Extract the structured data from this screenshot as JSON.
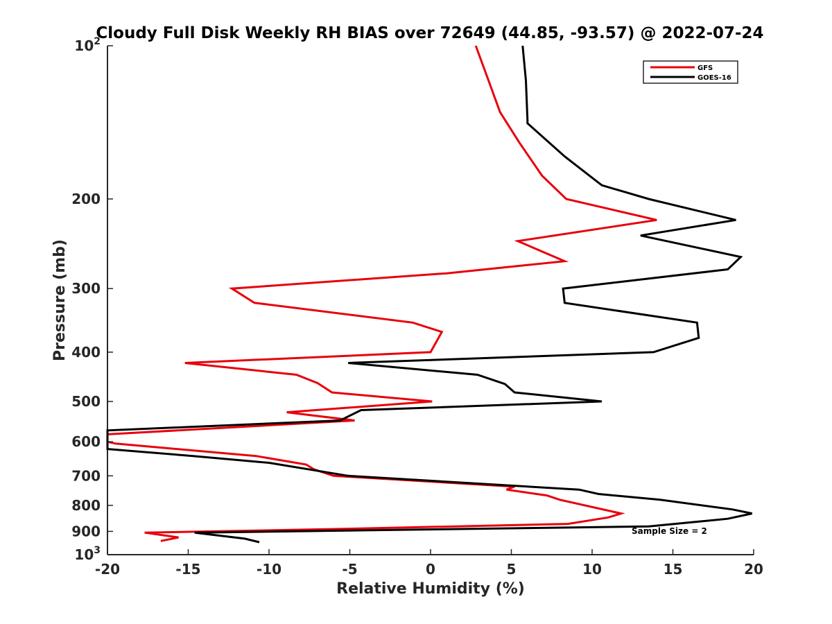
{
  "chart_data": {
    "type": "line",
    "title": "Cloudy Full Disk Weekly RH BIAS over 72649 (44.85, -93.57) @ 2022-07-24",
    "xlabel": "Relative Humidity (%)",
    "ylabel": "Pressure (mb)",
    "xlim": [
      -20,
      20
    ],
    "ylim": [
      100,
      1000
    ],
    "y_scale": "log",
    "y_reversed": true,
    "grid": false,
    "legend_position": "top-right",
    "x_ticks": [
      "-20",
      "-15",
      "-10",
      "-5",
      "0",
      "5",
      "10",
      "15",
      "20"
    ],
    "y_ticks": [
      {
        "value": 100,
        "base": "10",
        "exp": "2"
      },
      {
        "value": 200,
        "label": "200"
      },
      {
        "value": 300,
        "label": "300"
      },
      {
        "value": 400,
        "label": "400"
      },
      {
        "value": 500,
        "label": "500"
      },
      {
        "value": 600,
        "label": "600"
      },
      {
        "value": 700,
        "label": "700"
      },
      {
        "value": 800,
        "label": "800"
      },
      {
        "value": 900,
        "label": "900"
      },
      {
        "value": 1000,
        "base": "10",
        "exp": "3"
      }
    ],
    "annotation": "Sample Size = 2",
    "series": [
      {
        "name": "GFS",
        "color": "#e8000b",
        "points": [
          [
            2.8,
            100
          ],
          [
            3.5,
            115
          ],
          [
            4.3,
            135
          ],
          [
            5.5,
            155
          ],
          [
            6.9,
            180
          ],
          [
            8.4,
            200
          ],
          [
            14.0,
            220
          ],
          [
            5.4,
            242
          ],
          [
            8.3,
            265
          ],
          [
            1.0,
            280
          ],
          [
            -12.3,
            300
          ],
          [
            -10.9,
            320
          ],
          [
            -1.1,
            350
          ],
          [
            0.7,
            365
          ],
          [
            0,
            400
          ],
          [
            -15.2,
            420
          ],
          [
            -8.3,
            443
          ],
          [
            -7.0,
            460
          ],
          [
            -6.1,
            480
          ],
          [
            0.1,
            500
          ],
          [
            -8.9,
            525
          ],
          [
            -4.7,
            545
          ],
          [
            -11.4,
            560
          ],
          [
            -20.0,
            580
          ],
          [
            -20.0,
            600
          ],
          [
            -19.5,
            605
          ],
          [
            -10.8,
            640
          ],
          [
            -7.7,
            665
          ],
          [
            -7.2,
            680
          ],
          [
            -6.0,
            700
          ],
          [
            5.2,
            735
          ],
          [
            4.7,
            745
          ],
          [
            7.2,
            765
          ],
          [
            8.0,
            780
          ],
          [
            11.8,
            830
          ],
          [
            11.0,
            845
          ],
          [
            8.5,
            870
          ],
          [
            -5.6,
            890
          ],
          [
            -17.7,
            905
          ],
          [
            -15.6,
            925
          ],
          [
            -16.7,
            940
          ]
        ]
      },
      {
        "name": "GOES-16",
        "color": "#000000",
        "points": [
          [
            5.7,
            100
          ],
          [
            5.9,
            117
          ],
          [
            6.0,
            140
          ],
          [
            6.0,
            142
          ],
          [
            8.3,
            165
          ],
          [
            10.6,
            188
          ],
          [
            13.5,
            200
          ],
          [
            18.9,
            220
          ],
          [
            13.0,
            236
          ],
          [
            19.2,
            260
          ],
          [
            18.4,
            275
          ],
          [
            8.2,
            300
          ],
          [
            8.3,
            320
          ],
          [
            16.5,
            350
          ],
          [
            16.6,
            375
          ],
          [
            13.8,
            400
          ],
          [
            -5.1,
            420
          ],
          [
            2.9,
            443
          ],
          [
            4.6,
            462
          ],
          [
            5.2,
            480
          ],
          [
            10.6,
            500
          ],
          [
            -4.3,
            520
          ],
          [
            -5.6,
            545
          ],
          [
            -20.0,
            570
          ],
          [
            -20.0,
            620
          ],
          [
            -14.7,
            640
          ],
          [
            -10.0,
            660
          ],
          [
            -5.1,
            700
          ],
          [
            9.2,
            745
          ],
          [
            10.4,
            760
          ],
          [
            14.2,
            780
          ],
          [
            18.7,
            815
          ],
          [
            19.9,
            830
          ],
          [
            18.4,
            850
          ],
          [
            13.5,
            880
          ],
          [
            -14.6,
            905
          ],
          [
            -11.5,
            930
          ],
          [
            -10.6,
            945
          ]
        ]
      }
    ]
  }
}
